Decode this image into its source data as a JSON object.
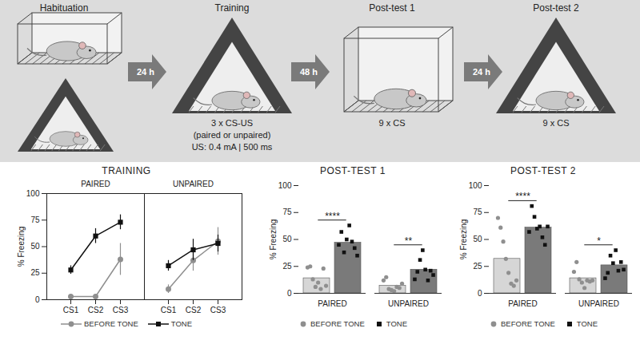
{
  "diagram": {
    "stages": [
      {
        "title": "Habituation",
        "lines": []
      },
      {
        "title": "Training",
        "lines": [
          "3 x CS-US",
          "(paired or unpaired)",
          "US: 0.4 mA | 500 ms"
        ]
      },
      {
        "title": "Post-test 1",
        "lines": [
          "9 x CS"
        ]
      },
      {
        "title": "Post-test 2",
        "lines": [
          "9 x CS"
        ]
      }
    ],
    "intervals": [
      "24 h",
      "48 h",
      "24 h"
    ]
  },
  "chart_data": [
    {
      "type": "line",
      "title": "TRAINING",
      "ylabel": "% Freezing",
      "ylim": [
        0,
        100
      ],
      "yticks": [
        0,
        25,
        50,
        75,
        100
      ],
      "categories": [
        "CS1",
        "CS2",
        "CS3"
      ],
      "legend": "bottom",
      "panels": [
        {
          "title": "PAIRED",
          "series": [
            {
              "name": "BEFORE TONE",
              "color": "#8f8f8f",
              "marker": "circle",
              "values": [
                3,
                3,
                38
              ],
              "errors": [
                2,
                1,
                15
              ]
            },
            {
              "name": "TONE",
              "color": "#111111",
              "marker": "square",
              "values": [
                28,
                60,
                73
              ],
              "errors": [
                4,
                7,
                7
              ]
            }
          ]
        },
        {
          "title": "UNPAIRED",
          "series": [
            {
              "name": "BEFORE TONE",
              "color": "#8f8f8f",
              "marker": "circle",
              "values": [
                10,
                37,
                55
              ],
              "errors": [
                4,
                10,
                13
              ]
            },
            {
              "name": "TONE",
              "color": "#111111",
              "marker": "square",
              "values": [
                32,
                47,
                53
              ],
              "errors": [
                5,
                10,
                8
              ]
            }
          ]
        }
      ]
    },
    {
      "type": "bar",
      "title": "POST-TEST 1",
      "ylabel": "% Freezing",
      "ylim": [
        0,
        100
      ],
      "yticks": [
        0,
        25,
        50,
        75,
        100
      ],
      "categories": [
        "PAIRED",
        "UNPAIRED"
      ],
      "legend": "bottom",
      "annotations": [
        "****",
        "**"
      ],
      "series": [
        {
          "name": "BEFORE TONE",
          "color": "#d6d6d6",
          "marker": "circle",
          "values": [
            14,
            7
          ],
          "points": [
            [
              24,
              25,
              13,
              6,
              10,
              4,
              23,
              7
            ],
            [
              12,
              15,
              4,
              3,
              2,
              6,
              5,
              9
            ]
          ]
        },
        {
          "name": "TONE",
          "color": "#7a7a7a",
          "marker": "square",
          "values": [
            47,
            22
          ],
          "points": [
            [
              45,
              57,
              38,
              50,
              63,
              48,
              42,
              35
            ],
            [
              13,
              20,
              31,
              40,
              22,
              12,
              21,
              17
            ]
          ]
        }
      ]
    },
    {
      "type": "bar",
      "title": "POST-TEST 2",
      "ylabel": "% Freezing",
      "ylim": [
        0,
        100
      ],
      "yticks": [
        0,
        25,
        50,
        75,
        100
      ],
      "categories": [
        "PAIRED",
        "UNPAIRED"
      ],
      "legend": "bottom",
      "annotations": [
        "****",
        "*"
      ],
      "series": [
        {
          "name": "BEFORE TONE",
          "color": "#d6d6d6",
          "marker": "circle",
          "values": [
            32,
            14
          ],
          "points": [
            [
              70,
              61,
              48,
              32,
              19,
              9,
              7,
              12
            ],
            [
              20,
              29,
              13,
              10,
              5,
              12,
              11,
              12
            ]
          ]
        },
        {
          "name": "TONE",
          "color": "#7a7a7a",
          "marker": "square",
          "values": [
            61,
            26
          ],
          "points": [
            [
              57,
              81,
              71,
              60,
              62,
              52,
              45,
              62
            ],
            [
              14,
              19,
              35,
              28,
              40,
              21,
              29,
              22
            ]
          ]
        }
      ]
    }
  ]
}
